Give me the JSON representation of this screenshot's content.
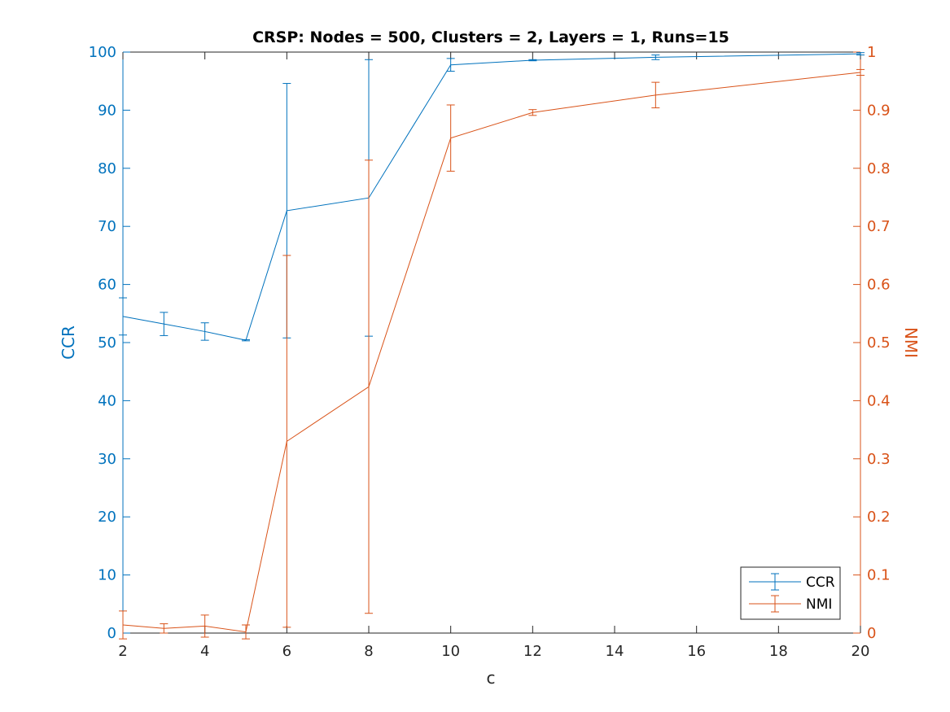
{
  "chart_data": {
    "type": "line",
    "title": "CRSP: Nodes = 500, Clusters = 2, Layers = 1, Runs=15",
    "xlabel": "c",
    "ylabel_left": "CCR",
    "ylabel_right": "NMI",
    "xlim": [
      2,
      20
    ],
    "ylim_left": [
      0,
      100
    ],
    "ylim_right": [
      0,
      1
    ],
    "xticks": [
      2,
      4,
      6,
      8,
      10,
      12,
      14,
      16,
      18,
      20
    ],
    "yticks_left": [
      0,
      10,
      20,
      30,
      40,
      50,
      60,
      70,
      80,
      90,
      100
    ],
    "yticks_right": [
      "0",
      "0.1",
      "0.2",
      "0.3",
      "0.4",
      "0.5",
      "0.6",
      "0.7",
      "0.8",
      "0.9",
      "1"
    ],
    "x": [
      2,
      3,
      4,
      5,
      6,
      8,
      10,
      12,
      15,
      20
    ],
    "legend_position": "bottom-right",
    "grid": false,
    "series": [
      {
        "name": "CCR",
        "axis": "left",
        "color": "#0072BD",
        "values": [
          54.5,
          53.2,
          51.9,
          50.4,
          72.7,
          74.9,
          97.8,
          98.6,
          99.1,
          99.7
        ],
        "error": [
          3.2,
          2.0,
          1.5,
          0.1,
          21.9,
          23.8,
          1.1,
          0.1,
          0.4,
          0.2
        ]
      },
      {
        "name": "NMI",
        "axis": "right",
        "color": "#D95319",
        "values": [
          0.014,
          0.008,
          0.012,
          0.002,
          0.33,
          0.424,
          0.852,
          0.896,
          0.926,
          0.965
        ],
        "error": [
          0.024,
          0.008,
          0.019,
          0.012,
          0.32,
          0.39,
          0.057,
          0.005,
          0.022,
          0.005
        ]
      }
    ]
  }
}
